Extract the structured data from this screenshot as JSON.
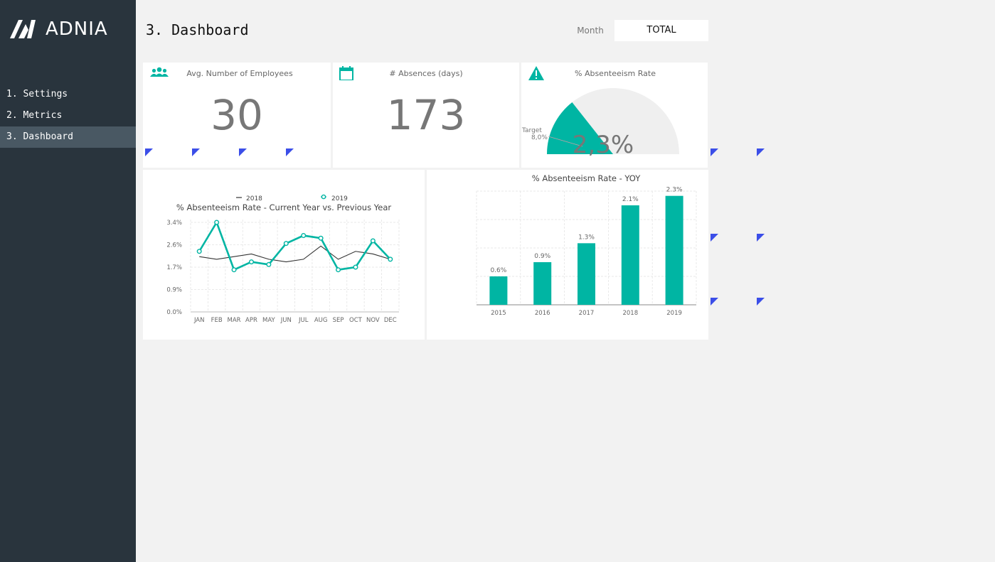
{
  "app": {
    "logo_text": "ADNIA",
    "page_title": "3. Dashboard"
  },
  "sidebar": {
    "items": [
      {
        "label": "1. Settings",
        "active": false
      },
      {
        "label": "2. Metrics",
        "active": false
      },
      {
        "label": "3. Dashboard",
        "active": true
      }
    ]
  },
  "filter": {
    "label": "Month",
    "value": "TOTAL"
  },
  "kpis": {
    "employees": {
      "title": "Avg. Number of Employees",
      "value": "30",
      "icon": "people-icon"
    },
    "absences": {
      "title": "# Absences (days)",
      "value": "173",
      "icon": "calendar-icon"
    },
    "rate": {
      "title": "% Absenteeism Rate",
      "value": "2,3%",
      "icon": "warning-icon",
      "target_label": "Target",
      "target_value": "8,0%"
    }
  },
  "colors": {
    "accent": "#00b5a3",
    "sidebar": "#29343d",
    "sidebar_active": "#495863",
    "marker": "#3b4ee8",
    "prev_year_line": "#333333"
  },
  "chart_data": [
    {
      "type": "line",
      "title": "% Absenteeism Rate - Current Year vs. Previous Year",
      "categories": [
        "JAN",
        "FEB",
        "MAR",
        "APR",
        "MAY",
        "JUN",
        "JUL",
        "AUG",
        "SEP",
        "OCT",
        "NOV",
        "DEC"
      ],
      "series": [
        {
          "name": "2018",
          "values": [
            2.1,
            2.0,
            2.1,
            2.2,
            2.0,
            1.9,
            2.0,
            2.5,
            2.0,
            2.3,
            2.2,
            2.0
          ]
        },
        {
          "name": "2019",
          "values": [
            2.3,
            3.4,
            1.6,
            1.9,
            1.8,
            2.6,
            2.9,
            2.8,
            1.6,
            1.7,
            2.7,
            2.0
          ]
        }
      ],
      "yticks": [
        "3.4%",
        "2.6%",
        "1.7%",
        "0.9%",
        "0.0%"
      ],
      "ylim": [
        0,
        3.4
      ],
      "legend": "top",
      "grid": true
    },
    {
      "type": "bar",
      "title": "% Absenteeism Rate - YOY",
      "categories": [
        "2015",
        "2016",
        "2017",
        "2018",
        "2019"
      ],
      "values": [
        0.6,
        0.9,
        1.3,
        2.1,
        2.3
      ],
      "labels": [
        "0.6%",
        "0.9%",
        "1.3%",
        "2.1%",
        "2.3%"
      ],
      "ylim": [
        0,
        2.4
      ],
      "grid": true
    }
  ],
  "gauge": {
    "value": 2.3,
    "max": 8.0
  }
}
